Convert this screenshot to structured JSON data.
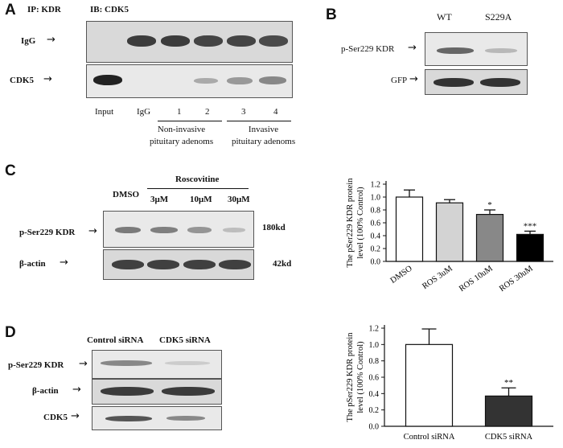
{
  "panel_a": {
    "letter": "A",
    "ip_label": "IP: KDR",
    "ib_label": "IB: CDK5",
    "row_labels": [
      "IgG",
      "CDK5"
    ],
    "lane_labels": [
      "Input",
      "IgG",
      "1",
      "2",
      "3",
      "4"
    ],
    "group_labels": [
      "Non-invasive\npituitary adenoms",
      "Invasive\npituitary adenoms"
    ]
  },
  "panel_b": {
    "letter": "B",
    "lane_labels": [
      "WT",
      "S229A"
    ],
    "row_labels": [
      "p-Ser229 KDR",
      "GFP"
    ]
  },
  "panel_c": {
    "letter": "C",
    "treatment_label": "Roscovitine",
    "lane_labels": [
      "DMSO",
      "3μM",
      "10μM",
      "30μM"
    ],
    "row_labels": [
      "p-Ser229 KDR",
      "β-actin"
    ],
    "size_markers": [
      "180kd",
      "42kd"
    ]
  },
  "panel_d": {
    "letter": "D",
    "lane_labels": [
      "Control siRNA",
      "CDK5 siRNA"
    ],
    "row_labels": [
      "p-Ser229 KDR",
      "β-actin",
      "CDK5"
    ]
  },
  "chart_data": [
    {
      "type": "bar",
      "categories": [
        "DMSO",
        "ROS 3uM",
        "ROS 10uM",
        "ROS 30uM"
      ],
      "values": [
        1.0,
        0.91,
        0.73,
        0.42
      ],
      "errors": [
        0.11,
        0.05,
        0.07,
        0.05
      ],
      "significance": [
        "",
        "",
        "*",
        "***"
      ],
      "colors": [
        "#ffffff",
        "#d3d3d3",
        "#888888",
        "#000000"
      ],
      "ylabel": "The pSer229 KDR protein level (100% Control)",
      "ylim": [
        0,
        1.2
      ],
      "yticks": [
        "0.0",
        "0.2",
        "0.4",
        "0.6",
        "0.8",
        "1.0",
        "1.2"
      ]
    },
    {
      "type": "bar",
      "categories": [
        "Control siRNA",
        "CDK5 siRNA"
      ],
      "values": [
        1.0,
        0.37
      ],
      "errors": [
        0.19,
        0.1
      ],
      "significance": [
        "",
        "**"
      ],
      "colors": [
        "#ffffff",
        "#333333"
      ],
      "ylabel": "The pSer229 KDR protein level (100% Control)",
      "ylim": [
        0,
        1.2
      ],
      "yticks": [
        "0.0",
        "0.2",
        "0.4",
        "0.6",
        "0.8",
        "1.0",
        "1.2"
      ]
    }
  ]
}
